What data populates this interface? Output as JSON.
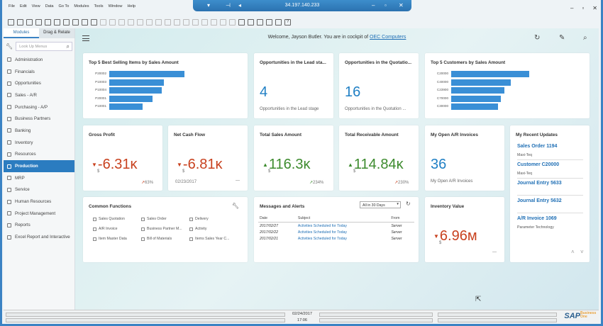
{
  "window": {
    "title": "34.197.140.233"
  },
  "menu": [
    "File",
    "Edit",
    "View",
    "Data",
    "Go To",
    "Modules",
    "Tools",
    "Window",
    "Help"
  ],
  "sidebar": {
    "tabs": [
      "Modules",
      "Drag & Relate"
    ],
    "search_placeholder": "Look Up Menus",
    "items": [
      "Administration",
      "Financials",
      "Opportunities",
      "Sales - A/R",
      "Purchasing - A/P",
      "Business Partners",
      "Banking",
      "Inventory",
      "Resources",
      "Production",
      "MRP",
      "Service",
      "Human Resources",
      "Project Management",
      "Reports",
      "Excel Report and Interactive"
    ],
    "selected_index": 9
  },
  "header": {
    "welcome_prefix": "Welcome, Jayson Butler.  You are in cockpit of ",
    "company": "OEC Computers"
  },
  "top_items": {
    "title": "Top 5 Best Selling Items by Sales Amount",
    "labels": [
      "P20002",
      "P10003",
      "P10004",
      "P20001",
      "P10001"
    ],
    "fractions": [
      1.0,
      0.73,
      0.7,
      0.58,
      0.44
    ]
  },
  "opp_lead": {
    "title": "Opportunities in the Lead sta...",
    "value": "4",
    "sub": "Opportunities in the Lead stage"
  },
  "opp_quote": {
    "title": "Opportunities in the Quotatio...",
    "value": "16",
    "sub": "Opportunities in the Quotation ..."
  },
  "top_customers": {
    "title": "Top 5 Customers by Sales Amount",
    "labels": [
      "C20000",
      "C40000",
      "C23900",
      "C70000",
      "C30000"
    ],
    "fractions": [
      1.0,
      0.76,
      0.68,
      0.64,
      0.6
    ]
  },
  "gross_profit": {
    "title": "Gross Profit",
    "value": "-6.31ĸ",
    "currency": "$",
    "pct": "63%"
  },
  "net_cash": {
    "title": "Net Cash Flow",
    "value": "-6.81ĸ",
    "currency": "$",
    "date": "02/23/2017",
    "trend": "—"
  },
  "total_sales": {
    "title": "Total Sales Amount",
    "value": "116.3ĸ",
    "currency": "$",
    "pct": "234%"
  },
  "total_recv": {
    "title": "Total Receivable Amount",
    "value": "114.84ĸ",
    "currency": "$",
    "pct": "230%"
  },
  "ar_invoices": {
    "title": "My Open A/R Invoices",
    "value": "36",
    "sub": "My Open A/R Invoices"
  },
  "updates": {
    "title": "My Recent Updates",
    "items": [
      {
        "name": "Sales Order 1194",
        "sub": "Maxi-Teq"
      },
      {
        "name": "Customer C20000",
        "sub": "Maxi-Teq"
      },
      {
        "name": "Journal Entry 5633",
        "sub": ""
      },
      {
        "name": "Journal Entry 5632",
        "sub": ""
      },
      {
        "name": "A/R Invoice 1069",
        "sub": "Parameter Technology"
      }
    ]
  },
  "common": {
    "title": "Common Functions",
    "items": [
      "Sales Quotation",
      "Sales Order",
      "Delivery",
      "A/R Invoice",
      "Business Partner M...",
      "Activity",
      "Item Master Data",
      "Bill of Materials",
      "Items Sales Year C..."
    ]
  },
  "messages": {
    "title": "Messages and Alerts",
    "filter": "All in 30 Days",
    "cols": [
      "Date",
      "Subject",
      "From"
    ],
    "rows": [
      [
        "2017/02/27",
        "Activities Scheduled for Today",
        "Server"
      ],
      [
        "2017/02/22",
        "Activities Scheduled for Today",
        "Server"
      ],
      [
        "2017/02/21",
        "Activities Scheduled for Today",
        "Server"
      ]
    ]
  },
  "inventory": {
    "title": "Inventory Value",
    "value": "6.96м",
    "currency": "$",
    "trend": "—"
  },
  "status": {
    "date": "02/24/2017",
    "time": "17:06",
    "brand": "SAP",
    "product": "Business One"
  },
  "colors": {
    "accent": "#2b7cc0",
    "bar": "#3a8fd6",
    "negative": "#c8411e",
    "positive": "#3d8b2e"
  }
}
